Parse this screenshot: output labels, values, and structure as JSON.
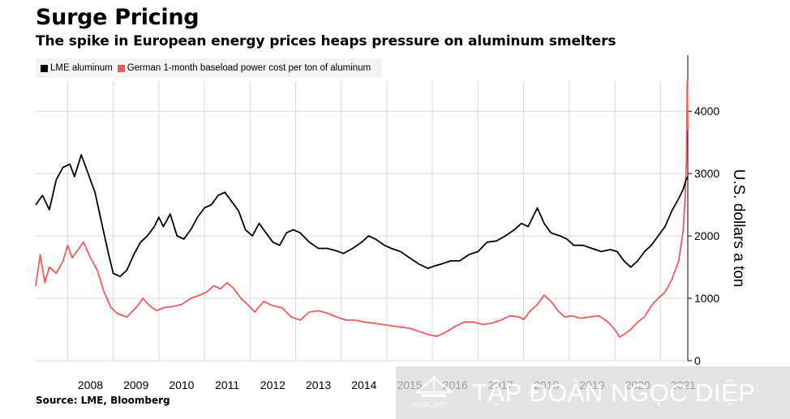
{
  "title": "Surge Pricing",
  "subtitle": "The spike in European energy prices heaps pressure on aluminum smelters",
  "source": "Source: LME, Bloomberg",
  "watermark": {
    "text": "TẬP ĐOÀN NGỌC DIỆP",
    "logo_text": "NGỌC DIỆP"
  },
  "colors": {
    "lme": "#000000",
    "power": "#f25a5a",
    "grid": "#dcdcdc",
    "axis": "#000000"
  },
  "chart_data": {
    "type": "line",
    "title": "Surge Pricing",
    "subtitle": "The spike in European energy prices heaps pressure on aluminum smelters",
    "ylabel": "U.S. dollars a ton",
    "ylim": [
      0,
      4900
    ],
    "xlim": [
      2007.3,
      2021.6
    ],
    "x_ticks": [
      2008,
      2009,
      2010,
      2011,
      2012,
      2013,
      2014,
      2015,
      2016,
      2017,
      2018,
      2019,
      2020,
      2021
    ],
    "x_tick_labels": [
      "2008",
      "2009",
      "2010",
      "2011",
      "2012",
      "2013",
      "2014",
      "2015",
      "2016",
      "2017",
      "2018",
      "2019",
      "2020",
      "2021"
    ],
    "y_ticks": [
      0,
      1000,
      2000,
      3000,
      4000
    ],
    "y_tick_labels": [
      "0",
      "1000",
      "2000",
      "3000",
      "4000"
    ],
    "y_axis_side": "right",
    "grid": true,
    "legend_position": "top-left",
    "series": [
      {
        "name": "LME aluminum",
        "color": "#000000",
        "points": [
          [
            2007.3,
            2500
          ],
          [
            2007.45,
            2650
          ],
          [
            2007.6,
            2420
          ],
          [
            2007.75,
            2900
          ],
          [
            2007.9,
            3100
          ],
          [
            2008.05,
            3150
          ],
          [
            2008.15,
            2950
          ],
          [
            2008.3,
            3300
          ],
          [
            2008.45,
            3000
          ],
          [
            2008.6,
            2700
          ],
          [
            2008.75,
            2200
          ],
          [
            2008.9,
            1700
          ],
          [
            2009.0,
            1400
          ],
          [
            2009.15,
            1350
          ],
          [
            2009.3,
            1450
          ],
          [
            2009.45,
            1700
          ],
          [
            2009.6,
            1900
          ],
          [
            2009.75,
            2000
          ],
          [
            2009.9,
            2150
          ],
          [
            2010.0,
            2300
          ],
          [
            2010.1,
            2150
          ],
          [
            2010.25,
            2350
          ],
          [
            2010.4,
            2000
          ],
          [
            2010.55,
            1950
          ],
          [
            2010.7,
            2100
          ],
          [
            2010.85,
            2300
          ],
          [
            2011.0,
            2450
          ],
          [
            2011.15,
            2500
          ],
          [
            2011.3,
            2650
          ],
          [
            2011.45,
            2700
          ],
          [
            2011.6,
            2550
          ],
          [
            2011.75,
            2400
          ],
          [
            2011.9,
            2100
          ],
          [
            2012.05,
            2000
          ],
          [
            2012.2,
            2200
          ],
          [
            2012.35,
            2050
          ],
          [
            2012.5,
            1900
          ],
          [
            2012.65,
            1850
          ],
          [
            2012.8,
            2050
          ],
          [
            2012.95,
            2100
          ],
          [
            2013.1,
            2050
          ],
          [
            2013.3,
            1900
          ],
          [
            2013.5,
            1800
          ],
          [
            2013.7,
            1800
          ],
          [
            2013.9,
            1760
          ],
          [
            2014.05,
            1720
          ],
          [
            2014.25,
            1800
          ],
          [
            2014.45,
            1900
          ],
          [
            2014.6,
            2000
          ],
          [
            2014.75,
            1950
          ],
          [
            2014.95,
            1850
          ],
          [
            2015.1,
            1800
          ],
          [
            2015.3,
            1750
          ],
          [
            2015.5,
            1650
          ],
          [
            2015.7,
            1550
          ],
          [
            2015.9,
            1480
          ],
          [
            2016.05,
            1520
          ],
          [
            2016.2,
            1550
          ],
          [
            2016.4,
            1600
          ],
          [
            2016.6,
            1600
          ],
          [
            2016.8,
            1700
          ],
          [
            2017.0,
            1750
          ],
          [
            2017.2,
            1900
          ],
          [
            2017.4,
            1920
          ],
          [
            2017.6,
            2000
          ],
          [
            2017.8,
            2100
          ],
          [
            2017.95,
            2200
          ],
          [
            2018.1,
            2150
          ],
          [
            2018.3,
            2450
          ],
          [
            2018.45,
            2200
          ],
          [
            2018.6,
            2050
          ],
          [
            2018.8,
            2000
          ],
          [
            2018.95,
            1950
          ],
          [
            2019.1,
            1850
          ],
          [
            2019.3,
            1850
          ],
          [
            2019.5,
            1800
          ],
          [
            2019.7,
            1750
          ],
          [
            2019.9,
            1780
          ],
          [
            2020.05,
            1750
          ],
          [
            2020.2,
            1600
          ],
          [
            2020.35,
            1500
          ],
          [
            2020.5,
            1600
          ],
          [
            2020.65,
            1750
          ],
          [
            2020.8,
            1850
          ],
          [
            2020.95,
            2000
          ],
          [
            2021.1,
            2150
          ],
          [
            2021.25,
            2400
          ],
          [
            2021.4,
            2600
          ],
          [
            2021.5,
            2750
          ],
          [
            2021.56,
            2900
          ],
          [
            2021.6,
            2950
          ]
        ]
      },
      {
        "name": "German 1-month baseload power cost per ton of aluminum",
        "color": "#f25a5a",
        "points": [
          [
            2007.3,
            1200
          ],
          [
            2007.4,
            1700
          ],
          [
            2007.5,
            1250
          ],
          [
            2007.6,
            1500
          ],
          [
            2007.75,
            1400
          ],
          [
            2007.9,
            1600
          ],
          [
            2008.0,
            1850
          ],
          [
            2008.1,
            1650
          ],
          [
            2008.25,
            1800
          ],
          [
            2008.35,
            1900
          ],
          [
            2008.5,
            1650
          ],
          [
            2008.65,
            1450
          ],
          [
            2008.8,
            1100
          ],
          [
            2008.95,
            850
          ],
          [
            2009.1,
            750
          ],
          [
            2009.3,
            700
          ],
          [
            2009.5,
            850
          ],
          [
            2009.65,
            1000
          ],
          [
            2009.8,
            880
          ],
          [
            2009.95,
            800
          ],
          [
            2010.1,
            850
          ],
          [
            2010.3,
            870
          ],
          [
            2010.5,
            900
          ],
          [
            2010.7,
            1000
          ],
          [
            2010.9,
            1050
          ],
          [
            2011.05,
            1100
          ],
          [
            2011.2,
            1200
          ],
          [
            2011.35,
            1150
          ],
          [
            2011.5,
            1250
          ],
          [
            2011.65,
            1150
          ],
          [
            2011.8,
            1000
          ],
          [
            2011.95,
            900
          ],
          [
            2012.1,
            780
          ],
          [
            2012.3,
            950
          ],
          [
            2012.5,
            880
          ],
          [
            2012.7,
            850
          ],
          [
            2012.9,
            700
          ],
          [
            2013.1,
            650
          ],
          [
            2013.3,
            780
          ],
          [
            2013.5,
            800
          ],
          [
            2013.7,
            760
          ],
          [
            2013.9,
            700
          ],
          [
            2014.1,
            650
          ],
          [
            2014.3,
            650
          ],
          [
            2014.5,
            620
          ],
          [
            2014.7,
            600
          ],
          [
            2014.9,
            580
          ],
          [
            2015.1,
            560
          ],
          [
            2015.3,
            540
          ],
          [
            2015.5,
            520
          ],
          [
            2015.7,
            470
          ],
          [
            2015.9,
            420
          ],
          [
            2016.1,
            390
          ],
          [
            2016.3,
            460
          ],
          [
            2016.5,
            550
          ],
          [
            2016.7,
            620
          ],
          [
            2016.9,
            620
          ],
          [
            2017.1,
            580
          ],
          [
            2017.3,
            600
          ],
          [
            2017.5,
            650
          ],
          [
            2017.7,
            720
          ],
          [
            2017.9,
            700
          ],
          [
            2018.0,
            660
          ],
          [
            2018.15,
            800
          ],
          [
            2018.3,
            900
          ],
          [
            2018.45,
            1050
          ],
          [
            2018.6,
            950
          ],
          [
            2018.75,
            800
          ],
          [
            2018.9,
            700
          ],
          [
            2019.05,
            720
          ],
          [
            2019.25,
            680
          ],
          [
            2019.45,
            700
          ],
          [
            2019.65,
            720
          ],
          [
            2019.85,
            620
          ],
          [
            2020.0,
            500
          ],
          [
            2020.1,
            380
          ],
          [
            2020.2,
            420
          ],
          [
            2020.35,
            500
          ],
          [
            2020.5,
            620
          ],
          [
            2020.65,
            700
          ],
          [
            2020.8,
            880
          ],
          [
            2020.95,
            1000
          ],
          [
            2021.1,
            1100
          ],
          [
            2021.25,
            1300
          ],
          [
            2021.4,
            1600
          ],
          [
            2021.5,
            2100
          ],
          [
            2021.54,
            2600
          ],
          [
            2021.57,
            3200
          ],
          [
            2021.59,
            4500
          ],
          [
            2021.6,
            3700
          ]
        ]
      }
    ]
  }
}
